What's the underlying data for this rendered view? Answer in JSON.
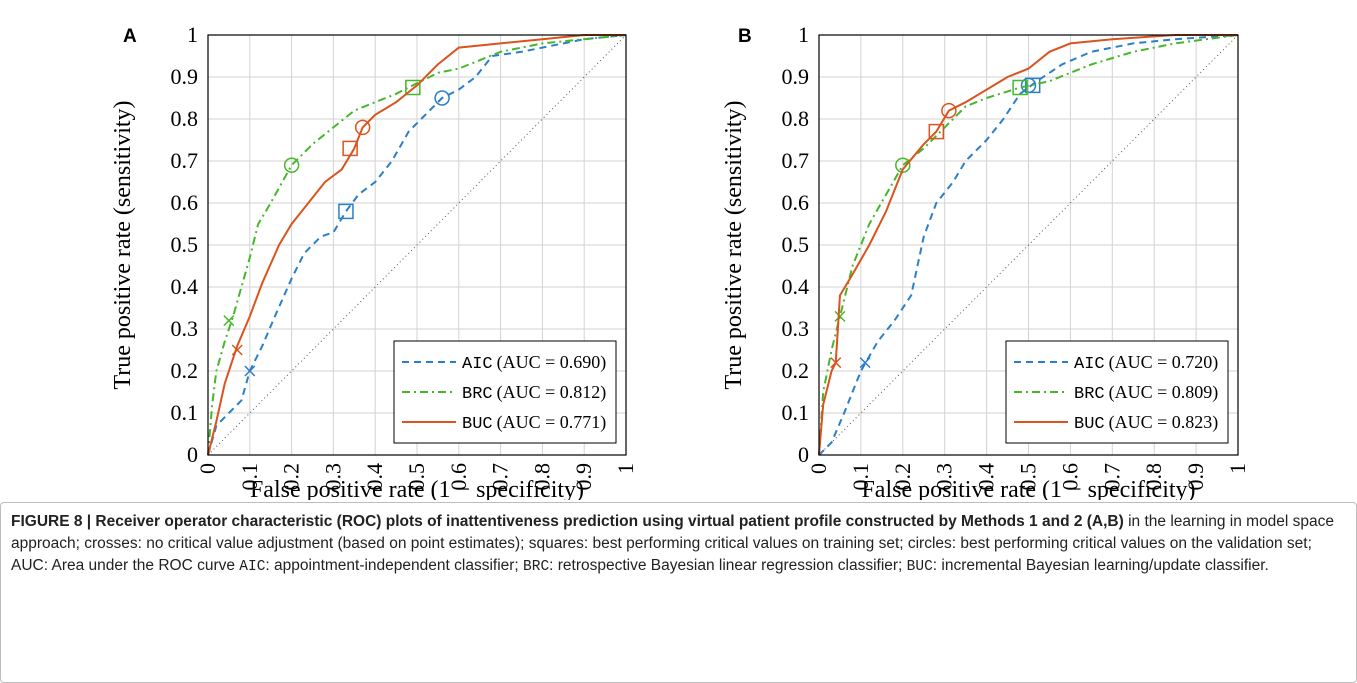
{
  "chart_data": [
    {
      "type": "line",
      "panel_label": "A",
      "xlabel": "False positive rate (1 − specificity)",
      "ylabel": "True positive rate (sensitivity)",
      "xlim": [
        0,
        1
      ],
      "ylim": [
        0,
        1
      ],
      "xticks": [
        0,
        0.1,
        0.2,
        0.3,
        0.4,
        0.5,
        0.6,
        0.7,
        0.8,
        0.9,
        1
      ],
      "yticks": [
        0,
        0.1,
        0.2,
        0.3,
        0.4,
        0.5,
        0.6,
        0.7,
        0.8,
        0.9,
        1
      ],
      "grid": true,
      "legend": "lower right",
      "series": [
        {
          "name": "AIC",
          "note": "(AUC = 0.690)",
          "color": "#2a7fc9",
          "dash": "dashed",
          "x": [
            0,
            0.02,
            0.05,
            0.08,
            0.1,
            0.13,
            0.16,
            0.2,
            0.23,
            0.27,
            0.3,
            0.33,
            0.36,
            0.4,
            0.44,
            0.48,
            0.52,
            0.56,
            0.6,
            0.64,
            0.68,
            0.75,
            0.8,
            0.9,
            1
          ],
          "values": [
            0,
            0.07,
            0.1,
            0.13,
            0.2,
            0.26,
            0.33,
            0.42,
            0.48,
            0.52,
            0.53,
            0.58,
            0.62,
            0.65,
            0.7,
            0.77,
            0.81,
            0.85,
            0.87,
            0.9,
            0.95,
            0.96,
            0.97,
            0.99,
            1
          ],
          "markers": {
            "cross": {
              "x": 0.1,
              "y": 0.2
            },
            "square": {
              "x": 0.33,
              "y": 0.58
            },
            "circle": {
              "x": 0.56,
              "y": 0.85
            }
          }
        },
        {
          "name": "BRC",
          "note": "(AUC = 0.812)",
          "color": "#44b82a",
          "dash": "dashdot",
          "x": [
            0,
            0.01,
            0.02,
            0.04,
            0.06,
            0.08,
            0.1,
            0.12,
            0.15,
            0.2,
            0.25,
            0.3,
            0.35,
            0.4,
            0.45,
            0.49,
            0.55,
            0.6,
            0.7,
            0.8,
            0.9,
            1
          ],
          "values": [
            0,
            0.12,
            0.2,
            0.27,
            0.33,
            0.4,
            0.47,
            0.55,
            0.6,
            0.69,
            0.74,
            0.78,
            0.82,
            0.84,
            0.86,
            0.88,
            0.91,
            0.92,
            0.96,
            0.98,
            0.99,
            1
          ],
          "markers": {
            "cross": {
              "x": 0.05,
              "y": 0.32
            },
            "square": {
              "x": 0.49,
              "y": 0.875
            },
            "circle": {
              "x": 0.2,
              "y": 0.69
            }
          }
        },
        {
          "name": "BUC",
          "note": "(AUC = 0.771)",
          "color": "#d9541e",
          "dash": "solid",
          "x": [
            0,
            0.02,
            0.04,
            0.07,
            0.1,
            0.13,
            0.17,
            0.2,
            0.24,
            0.28,
            0.32,
            0.35,
            0.37,
            0.4,
            0.45,
            0.5,
            0.55,
            0.6,
            0.7,
            0.8,
            0.9,
            1
          ],
          "values": [
            0,
            0.08,
            0.17,
            0.26,
            0.33,
            0.41,
            0.5,
            0.55,
            0.6,
            0.65,
            0.68,
            0.73,
            0.78,
            0.81,
            0.84,
            0.88,
            0.93,
            0.97,
            0.98,
            0.99,
            1,
            1
          ],
          "markers": {
            "cross": {
              "x": 0.07,
              "y": 0.25
            },
            "square": {
              "x": 0.34,
              "y": 0.73
            },
            "circle": {
              "x": 0.37,
              "y": 0.78
            }
          }
        }
      ]
    },
    {
      "type": "line",
      "panel_label": "B",
      "xlabel": "False positive rate (1 − specificity)",
      "ylabel": "True positive rate (sensitivity)",
      "xlim": [
        0,
        1
      ],
      "ylim": [
        0,
        1
      ],
      "xticks": [
        0,
        0.1,
        0.2,
        0.3,
        0.4,
        0.5,
        0.6,
        0.7,
        0.8,
        0.9,
        1
      ],
      "yticks": [
        0,
        0.1,
        0.2,
        0.3,
        0.4,
        0.5,
        0.6,
        0.7,
        0.8,
        0.9,
        1
      ],
      "grid": true,
      "legend": "lower right",
      "series": [
        {
          "name": "AIC",
          "note": "(AUC = 0.720)",
          "color": "#2a7fc9",
          "dash": "dashed",
          "x": [
            0,
            0.03,
            0.06,
            0.1,
            0.14,
            0.18,
            0.22,
            0.25,
            0.28,
            0.32,
            0.35,
            0.4,
            0.44,
            0.48,
            0.52,
            0.58,
            0.65,
            0.75,
            0.85,
            1
          ],
          "values": [
            0,
            0.03,
            0.1,
            0.2,
            0.27,
            0.32,
            0.38,
            0.52,
            0.6,
            0.65,
            0.7,
            0.75,
            0.8,
            0.86,
            0.89,
            0.93,
            0.96,
            0.98,
            0.99,
            1
          ],
          "markers": {
            "cross": {
              "x": 0.11,
              "y": 0.22
            },
            "square": {
              "x": 0.51,
              "y": 0.88
            },
            "circle": {
              "x": 0.5,
              "y": 0.88
            }
          }
        },
        {
          "name": "BRC",
          "note": "(AUC = 0.809)",
          "color": "#44b82a",
          "dash": "dashdot",
          "x": [
            0,
            0.01,
            0.03,
            0.05,
            0.08,
            0.12,
            0.16,
            0.2,
            0.25,
            0.3,
            0.35,
            0.4,
            0.48,
            0.55,
            0.65,
            0.75,
            0.85,
            1
          ],
          "values": [
            0,
            0.15,
            0.25,
            0.33,
            0.45,
            0.55,
            0.62,
            0.69,
            0.73,
            0.78,
            0.83,
            0.85,
            0.875,
            0.89,
            0.93,
            0.96,
            0.98,
            1
          ],
          "markers": {
            "cross": {
              "x": 0.05,
              "y": 0.33
            },
            "square": {
              "x": 0.48,
              "y": 0.875
            },
            "circle": {
              "x": 0.2,
              "y": 0.69
            }
          }
        },
        {
          "name": "BUC",
          "note": "(AUC = 0.823)",
          "color": "#d9541e",
          "dash": "solid",
          "x": [
            0,
            0.01,
            0.03,
            0.04,
            0.05,
            0.08,
            0.12,
            0.16,
            0.2,
            0.25,
            0.28,
            0.31,
            0.35,
            0.4,
            0.45,
            0.5,
            0.55,
            0.6,
            0.7,
            0.85,
            1
          ],
          "values": [
            0,
            0.12,
            0.2,
            0.22,
            0.38,
            0.43,
            0.5,
            0.58,
            0.68,
            0.74,
            0.77,
            0.82,
            0.84,
            0.87,
            0.9,
            0.92,
            0.96,
            0.98,
            0.99,
            1,
            1
          ],
          "markers": {
            "cross": {
              "x": 0.04,
              "y": 0.22
            },
            "square": {
              "x": 0.28,
              "y": 0.77
            },
            "circle": {
              "x": 0.31,
              "y": 0.82
            }
          }
        }
      ]
    }
  ],
  "caption": [
    {
      "style": "bold",
      "text": "FIGURE 8 | Receiver operator characteristic (ROC) plots of inattentiveness prediction using virtual patient profile constructed by Methods 1 and 2 (A,B)"
    },
    {
      "style": "plain",
      "text": " in the learning in model space approach; crosses: no critical value adjustment (based on point estimates); squares: best performing critical values on training set; circles: best performing critical values on the validation set; AUC: Area under the ROC curve "
    },
    {
      "style": "mono",
      "text": "AIC"
    },
    {
      "style": "plain",
      "text": ": appointment-independent classifier; "
    },
    {
      "style": "mono",
      "text": "BRC"
    },
    {
      "style": "plain",
      "text": ": retrospective Bayesian linear regression classifier; "
    },
    {
      "style": "mono",
      "text": "BUC"
    },
    {
      "style": "plain",
      "text": ": incremental Bayesian learning/update classifier."
    }
  ]
}
